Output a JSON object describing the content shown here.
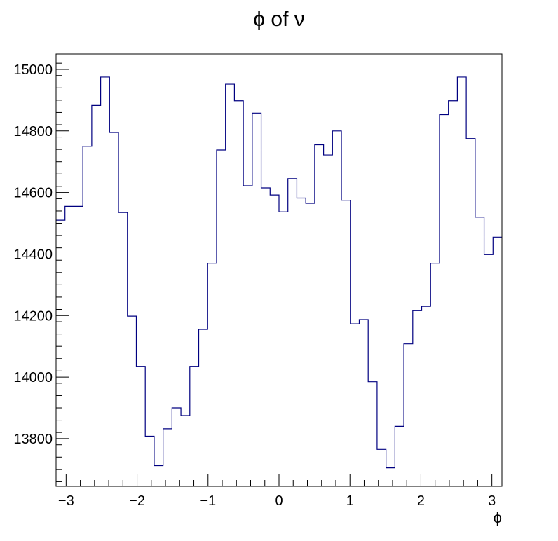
{
  "chart_data": {
    "type": "line",
    "title": "ϕ of ν",
    "xlabel": "ϕ",
    "ylabel": "",
    "xlim": [
      -3.1416,
      3.1416
    ],
    "ylim": [
      13645,
      15050
    ],
    "grid": false,
    "legend": "none",
    "line_color": "#000080",
    "x_ticks": [
      {
        "value": -3,
        "label": "−3"
      },
      {
        "value": -2,
        "label": "−2"
      },
      {
        "value": -1,
        "label": "−1"
      },
      {
        "value": 0,
        "label": "0"
      },
      {
        "value": 1,
        "label": "1"
      },
      {
        "value": 2,
        "label": "2"
      },
      {
        "value": 3,
        "label": "3"
      }
    ],
    "y_ticks": [
      {
        "value": 13800,
        "label": "13800"
      },
      {
        "value": 14000,
        "label": "14000"
      },
      {
        "value": 14200,
        "label": "14200"
      },
      {
        "value": 14400,
        "label": "14400"
      },
      {
        "value": 14600,
        "label": "14600"
      },
      {
        "value": 14800,
        "label": "14800"
      },
      {
        "value": 15000,
        "label": "15000"
      }
    ],
    "series": [
      {
        "values": [
          14510,
          14555,
          14555,
          14750,
          14883,
          14975,
          14795,
          14535,
          14198,
          14035,
          13808,
          13712,
          13832,
          13900,
          13875,
          14035,
          14155,
          14370,
          14738,
          14952,
          14898,
          14622,
          14858,
          14615,
          14592,
          14537,
          14645,
          14582,
          14565,
          14755,
          14722,
          14800,
          14575,
          14173,
          14187,
          13985,
          13765,
          13705,
          13840,
          14108,
          14216,
          14230,
          14370,
          14853,
          14898,
          14975,
          14775,
          14520,
          14398,
          14455
        ]
      }
    ]
  }
}
